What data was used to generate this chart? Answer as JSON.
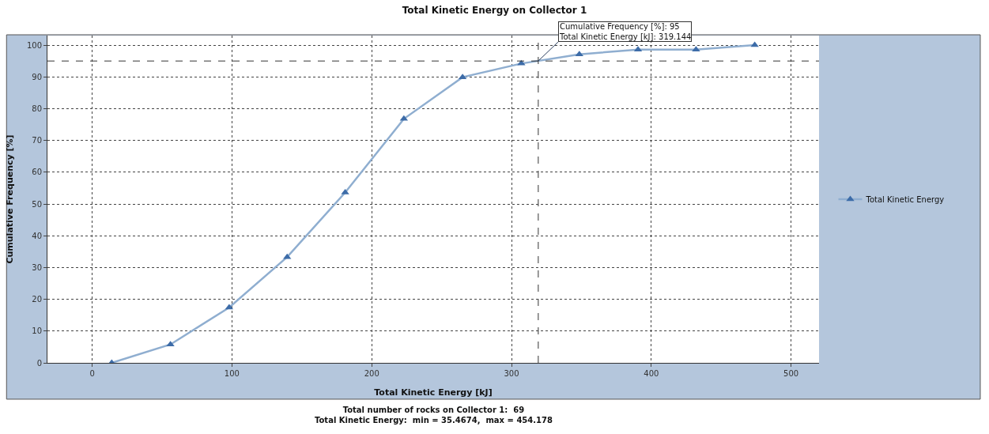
{
  "chart_data": {
    "type": "line",
    "title": "Total Kinetic Energy on Collector 1",
    "xlabel": "Total Kinetic Energy [kJ]",
    "ylabel": "Cumulative Frequency [%]",
    "x": [
      14,
      56,
      98,
      139.5,
      181,
      223,
      265,
      307,
      348.5,
      390.5,
      432,
      474
    ],
    "series": [
      {
        "name": "Total Kinetic Energy",
        "color": "#8faed0",
        "values": [
          0,
          5.8,
          17.4,
          33.3,
          53.6,
          76.8,
          89.9,
          94.2,
          97.1,
          98.6,
          98.6,
          100
        ]
      }
    ],
    "marker": "triangle",
    "line_style": "solid",
    "xlim": [
      -32,
      520
    ],
    "xticks": [
      0,
      100,
      200,
      300,
      400,
      500
    ],
    "ylim": [
      0,
      103
    ],
    "yticks": [
      0,
      10,
      20,
      30,
      40,
      50,
      60,
      70,
      80,
      90,
      100
    ],
    "grid": true,
    "legend": "right",
    "ref_lines": [
      {
        "axis": "x",
        "value": 319.144,
        "line_style": "dashed"
      },
      {
        "axis": "y",
        "value": 95,
        "line_style": "dashed"
      }
    ],
    "annotations": [
      {
        "text": "Cumulative Frequency [%]: 95\nTotal Kinetic Energy [kJ]: 319.144",
        "x": 319.144,
        "y": 95
      },
      "Total number of rocks on Collector 1:  69\nTotal Kinetic Energy:  min = 35.4674,  max = 454.178"
    ]
  }
}
